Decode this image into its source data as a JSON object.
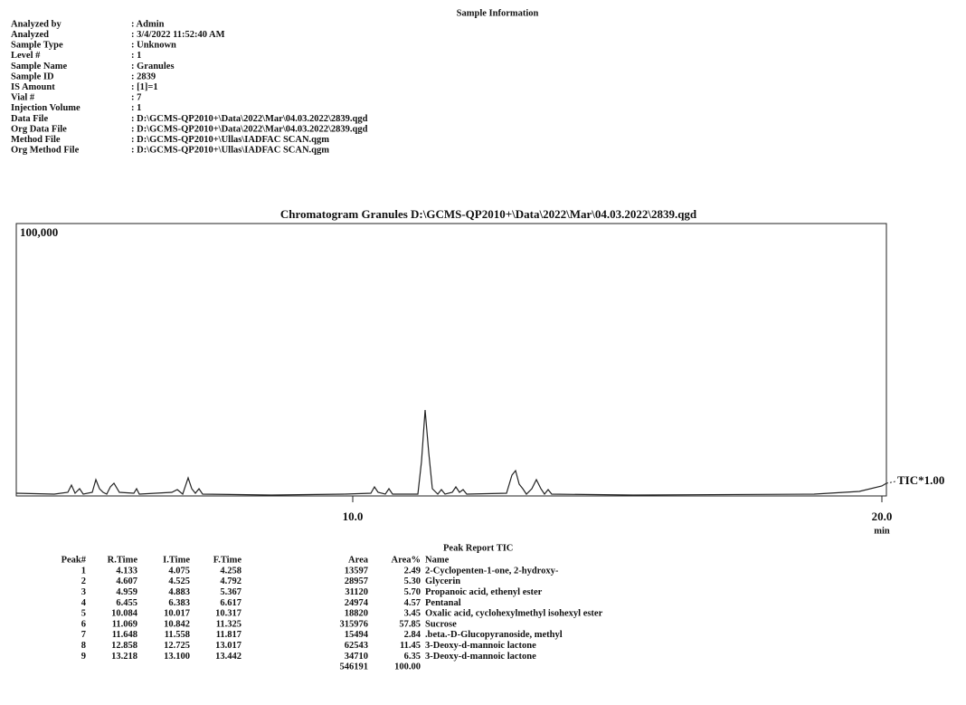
{
  "info": {
    "title": "Sample Information",
    "fields": [
      [
        "Analyzed by",
        ": Admin"
      ],
      [
        "Analyzed",
        ": 3/4/2022 11:52:40 AM"
      ],
      [
        "Sample Type",
        ": Unknown"
      ],
      [
        "Level #",
        ": 1"
      ],
      [
        "Sample Name",
        ": Granules"
      ],
      [
        "Sample ID",
        ": 2839"
      ],
      [
        "IS Amount",
        ": [1]=1"
      ],
      [
        "Vial #",
        ": 7"
      ],
      [
        "Injection Volume",
        ": 1"
      ],
      [
        "Data File",
        ": D:\\GCMS-QP2010+\\Data\\2022\\Mar\\04.03.2022\\2839.qgd"
      ],
      [
        "Org Data File",
        ": D:\\GCMS-QP2010+\\Data\\2022\\Mar\\04.03.2022\\2839.qgd"
      ],
      [
        "Method File",
        ": D:\\GCMS-QP2010+\\Ullas\\IADFAC SCAN.qgm"
      ],
      [
        "Org Method File",
        ": D:\\GCMS-QP2010+\\Ullas\\IADFAC SCAN.qgm"
      ]
    ]
  },
  "chromatogram": {
    "title": "Chromatogram Granules D:\\GCMS-QP2010+\\Data\\2022\\Mar\\04.03.2022\\2839.qgd",
    "y_max_label": "100,000",
    "x_labels": [
      "10.0",
      "20.0"
    ],
    "x_unit": "min",
    "trace_label": "TIC*1.00"
  },
  "peak_report": {
    "title": "Peak Report TIC",
    "columns": [
      "Peak#",
      "R.Time",
      "I.Time",
      "F.Time",
      "Area",
      "Area%",
      "Name"
    ],
    "rows": [
      [
        "1",
        "4.133",
        "4.075",
        "4.258",
        "13597",
        "2.49",
        "2-Cyclopenten-1-one, 2-hydroxy-"
      ],
      [
        "2",
        "4.607",
        "4.525",
        "4.792",
        "28957",
        "5.30",
        "Glycerin"
      ],
      [
        "3",
        "4.959",
        "4.883",
        "5.367",
        "31120",
        "5.70",
        "Propanoic acid, ethenyl ester"
      ],
      [
        "4",
        "6.455",
        "6.383",
        "6.617",
        "24974",
        "4.57",
        "Pentanal"
      ],
      [
        "5",
        "10.084",
        "10.017",
        "10.317",
        "18820",
        "3.45",
        "Oxalic acid, cyclohexylmethyl isohexyl ester"
      ],
      [
        "6",
        "11.069",
        "10.842",
        "11.325",
        "315976",
        "57.85",
        "Sucrose"
      ],
      [
        "7",
        "11.648",
        "11.558",
        "11.817",
        "15494",
        "2.84",
        ".beta.-D-Glucopyranoside, methyl"
      ],
      [
        "8",
        "12.858",
        "12.725",
        "13.017",
        "62543",
        "11.45",
        "3-Deoxy-d-mannoic lactone"
      ],
      [
        "9",
        "13.218",
        "13.100",
        "13.442",
        "34710",
        "6.35",
        "3-Deoxy-d-mannoic lactone"
      ]
    ],
    "total": [
      "546191",
      "100.00"
    ]
  }
}
